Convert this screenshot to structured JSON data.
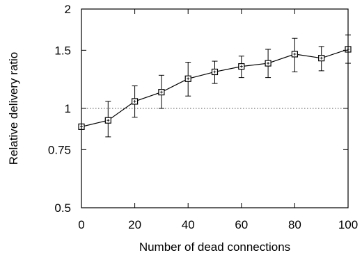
{
  "chart_data": {
    "type": "line",
    "title": "",
    "xlabel": "Number of dead connections",
    "ylabel": "Relative delivery ratio",
    "xlim": [
      0,
      100
    ],
    "ylim": [
      0.5,
      2
    ],
    "y_scale": "log",
    "x_ticks": [
      0,
      20,
      40,
      60,
      80,
      100
    ],
    "x_tick_labels": [
      "0",
      "20",
      "40",
      "60",
      "80",
      "100"
    ],
    "y_ticks": [
      0.5,
      0.75,
      1,
      1.5,
      2
    ],
    "y_tick_labels": [
      "0.5",
      "0.75",
      "1",
      "1.5",
      "2"
    ],
    "grid": false,
    "legend": "none",
    "reference_line": {
      "y": 1,
      "style": "dotted"
    },
    "series": [
      {
        "marker": "square",
        "error_bars": true,
        "x": [
          0,
          10,
          20,
          30,
          40,
          50,
          60,
          70,
          80,
          90,
          100
        ],
        "y": [
          0.88,
          0.92,
          1.05,
          1.12,
          1.23,
          1.29,
          1.34,
          1.37,
          1.46,
          1.42,
          1.51
        ],
        "y_low": [
          null,
          0.82,
          0.94,
          1.0,
          1.09,
          1.19,
          1.24,
          1.24,
          1.29,
          1.3,
          1.37
        ],
        "y_high": [
          null,
          1.05,
          1.17,
          1.26,
          1.38,
          1.39,
          1.44,
          1.51,
          1.63,
          1.54,
          1.67
        ]
      }
    ],
    "colors": {
      "line": "#000000",
      "axis": "#000000",
      "reference_line": "#555555",
      "background": "#ffffff"
    }
  }
}
